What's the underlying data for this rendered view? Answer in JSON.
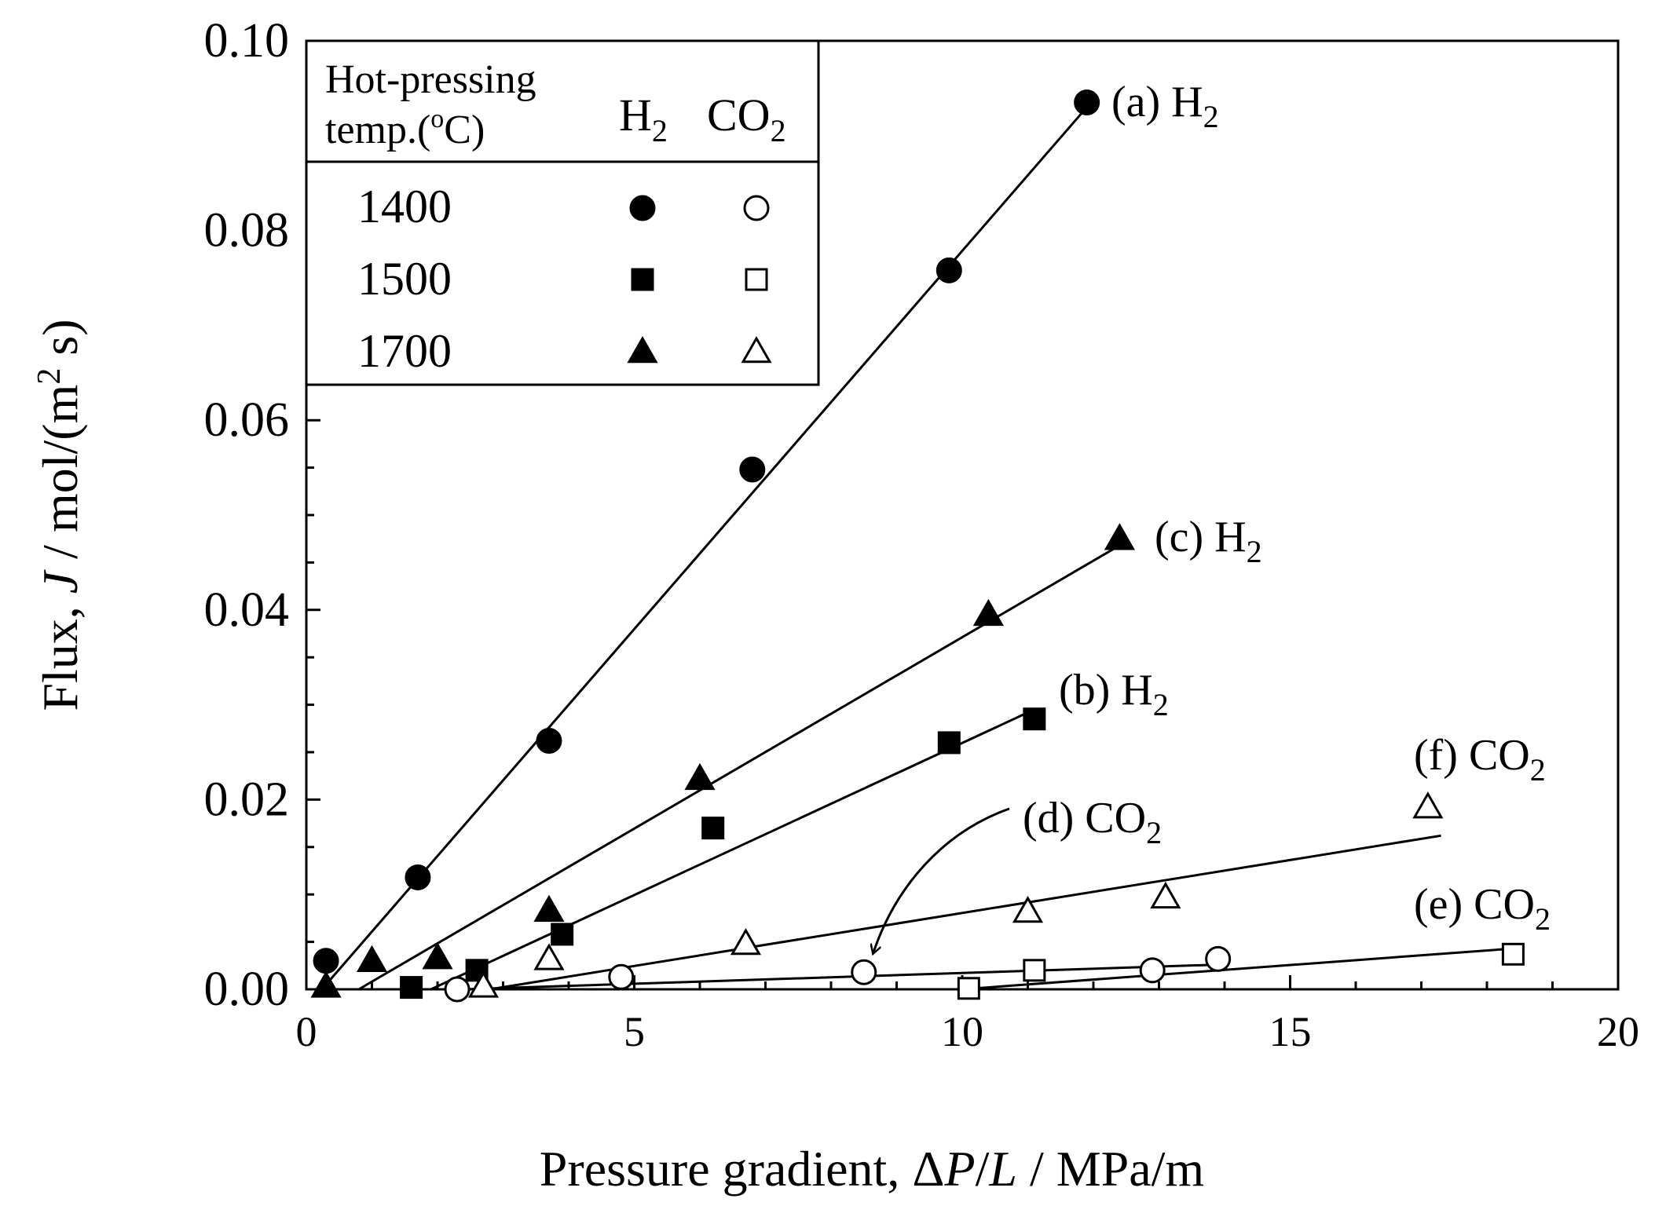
{
  "colors": {
    "ink": "#000000",
    "background": "#ffffff"
  },
  "chart_data": {
    "type": "scatter",
    "title": "",
    "xlabel": {
      "prefix": "Pressure gradient, Δ",
      "var1": "P",
      "slash": "/",
      "var2": "L",
      "suffix": " / MPa/m"
    },
    "ylabel": {
      "prefix": "Flux, ",
      "var": "J",
      "suffix": " / mol/(m",
      "sup": "2",
      "end": " s)"
    },
    "xlim": [
      0,
      20
    ],
    "ylim": [
      0,
      0.1
    ],
    "x_ticks": [
      "0",
      "5",
      "10",
      "15",
      "20"
    ],
    "y_ticks": [
      "0.00",
      "0.02",
      "0.04",
      "0.06",
      "0.08",
      "0.10"
    ],
    "legend": {
      "position": "top-left",
      "header_line1": "Hot-pressing",
      "header_line2": "temp.(",
      "header_deg": "o",
      "header_unit": "C)",
      "col_h2": "H",
      "col_h2_sub": "2",
      "col_co2": "CO",
      "col_co2_sub": "2",
      "rows": [
        {
          "temp": "1400",
          "marker": "circle"
        },
        {
          "temp": "1500",
          "marker": "square"
        },
        {
          "temp": "1700",
          "marker": "triangle"
        }
      ]
    },
    "series": [
      {
        "id": "a",
        "label": "(a) H",
        "label_sub": "2",
        "gas": "H2",
        "temp": "1400",
        "marker": "circle",
        "filled": true,
        "points": [
          [
            0.3,
            0.003
          ],
          [
            1.7,
            0.0118
          ],
          [
            3.7,
            0.0262
          ],
          [
            6.8,
            0.0548
          ],
          [
            9.8,
            0.0758
          ],
          [
            11.9,
            0.0935
          ]
        ],
        "fit": [
          [
            0.3,
            0.0005
          ],
          [
            11.9,
            0.093
          ]
        ]
      },
      {
        "id": "b",
        "label": "(b) H",
        "label_sub": "2",
        "gas": "H2",
        "temp": "1500",
        "marker": "square",
        "filled": true,
        "points": [
          [
            1.6,
            0.0002
          ],
          [
            2.6,
            0.002
          ],
          [
            3.9,
            0.0058
          ],
          [
            6.2,
            0.017
          ],
          [
            9.8,
            0.026
          ],
          [
            11.1,
            0.0285
          ]
        ],
        "fit": [
          [
            1.9,
            0.0
          ],
          [
            11.1,
            0.0295
          ]
        ]
      },
      {
        "id": "c",
        "label": "(c) H",
        "label_sub": "2",
        "gas": "H2",
        "temp": "1700",
        "marker": "triangle",
        "filled": true,
        "points": [
          [
            0.3,
            0.0003
          ],
          [
            1.0,
            0.003
          ],
          [
            2.0,
            0.0033
          ],
          [
            3.7,
            0.0083
          ],
          [
            6.0,
            0.0222
          ],
          [
            10.4,
            0.0395
          ],
          [
            12.4,
            0.0475
          ]
        ],
        "fit": [
          [
            0.8,
            0.0
          ],
          [
            12.4,
            0.0468
          ]
        ]
      },
      {
        "id": "d",
        "label": "(d) CO",
        "label_sub": "2",
        "gas": "CO2",
        "temp": "1400",
        "marker": "circle",
        "filled": false,
        "points": [
          [
            2.3,
            0.0
          ],
          [
            4.8,
            0.0013
          ],
          [
            8.5,
            0.0018
          ],
          [
            12.9,
            0.002
          ],
          [
            13.9,
            0.0032
          ]
        ],
        "fit": [
          [
            2.4,
            0.0
          ],
          [
            13.9,
            0.0026
          ]
        ]
      },
      {
        "id": "e",
        "label": "(e) CO",
        "label_sub": "2",
        "gas": "CO2",
        "temp": "1500",
        "marker": "square",
        "filled": false,
        "points": [
          [
            10.1,
            0.0001
          ],
          [
            11.1,
            0.002
          ],
          [
            18.4,
            0.0037
          ]
        ],
        "fit": [
          [
            10.0,
            0.0
          ],
          [
            18.4,
            0.0043
          ]
        ]
      },
      {
        "id": "f",
        "label": "(f) CO",
        "label_sub": "2",
        "gas": "CO2",
        "temp": "1700",
        "marker": "triangle",
        "filled": false,
        "points": [
          [
            2.7,
            0.0003
          ],
          [
            3.7,
            0.0032
          ],
          [
            6.7,
            0.0048
          ],
          [
            11.0,
            0.0082
          ],
          [
            13.1,
            0.0097
          ],
          [
            17.1,
            0.0192
          ]
        ],
        "fit": [
          [
            2.8,
            0.0
          ],
          [
            17.3,
            0.0162
          ]
        ]
      }
    ]
  }
}
